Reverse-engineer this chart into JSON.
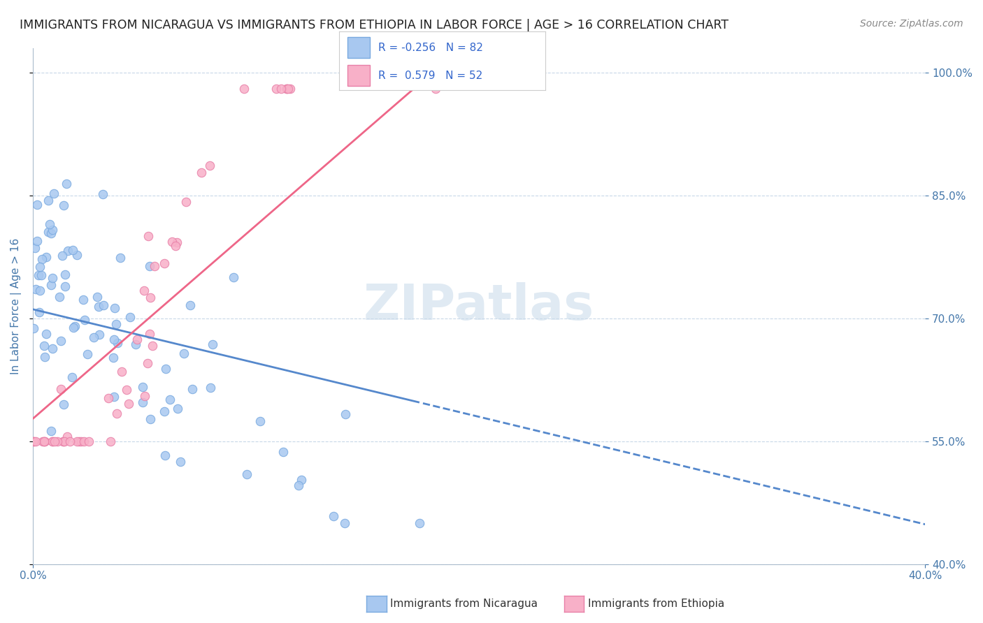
{
  "title": "IMMIGRANTS FROM NICARAGUA VS IMMIGRANTS FROM ETHIOPIA IN LABOR FORCE | AGE > 16 CORRELATION CHART",
  "source": "Source: ZipAtlas.com",
  "ylabel": "In Labor Force | Age > 16",
  "xlim": [
    0.0,
    0.4
  ],
  "ylim": [
    0.4,
    1.03
  ],
  "ytick_values": [
    0.4,
    0.55,
    0.7,
    0.85,
    1.0
  ],
  "xtick_values": [
    0.0,
    0.4
  ],
  "nicaragua_color": "#a8c8f0",
  "nicaragua_edge": "#7aaae0",
  "ethiopia_color": "#f8b0c8",
  "ethiopia_edge": "#e880a8",
  "nicaragua_R": -0.256,
  "nicaragua_N": 82,
  "ethiopia_R": 0.579,
  "ethiopia_N": 52,
  "line_nicaragua_color": "#5588cc",
  "line_ethiopia_color": "#ee6688",
  "watermark": "ZIPatlas",
  "background_color": "#ffffff",
  "grid_color": "#c8d8e8",
  "axis_label_color": "#4477aa",
  "tick_color": "#4477aa"
}
